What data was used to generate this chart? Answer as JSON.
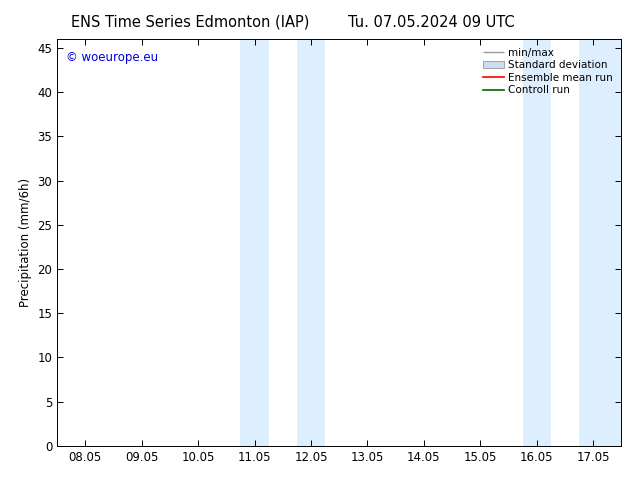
{
  "title_left": "ENS Time Series Edmonton (IAP)",
  "title_right": "Tu. 07.05.2024 09 UTC",
  "ylabel": "Precipitation (mm/6h)",
  "ylim": [
    0,
    46
  ],
  "yticks": [
    0,
    5,
    10,
    15,
    20,
    25,
    30,
    35,
    40,
    45
  ],
  "xtick_labels": [
    "08.05",
    "09.05",
    "10.05",
    "11.05",
    "12.05",
    "13.05",
    "14.05",
    "15.05",
    "16.05",
    "17.05"
  ],
  "xtick_positions": [
    0,
    1,
    2,
    3,
    4,
    5,
    6,
    7,
    8,
    9
  ],
  "xlim": [
    -0.5,
    9.5
  ],
  "shaded_regions": [
    {
      "x_start": 2.75,
      "x_end": 3.25,
      "color": "#ddeeff"
    },
    {
      "x_start": 3.75,
      "x_end": 4.25,
      "color": "#ddeeff"
    },
    {
      "x_start": 7.75,
      "x_end": 8.25,
      "color": "#ddeeff"
    },
    {
      "x_start": 8.75,
      "x_end": 9.5,
      "color": "#ddeeff"
    }
  ],
  "background_color": "#ffffff",
  "watermark_text": "© woeurope.eu",
  "watermark_color": "#0000dd",
  "legend_labels": [
    "min/max",
    "Standard deviation",
    "Ensemble mean run",
    "Controll run"
  ],
  "legend_colors_line": [
    "#999999",
    "#bbccdd",
    "#ff0000",
    "#006600"
  ],
  "title_fontsize": 10.5,
  "tick_fontsize": 8.5,
  "ylabel_fontsize": 8.5,
  "figure_width": 6.34,
  "figure_height": 4.9,
  "dpi": 100
}
